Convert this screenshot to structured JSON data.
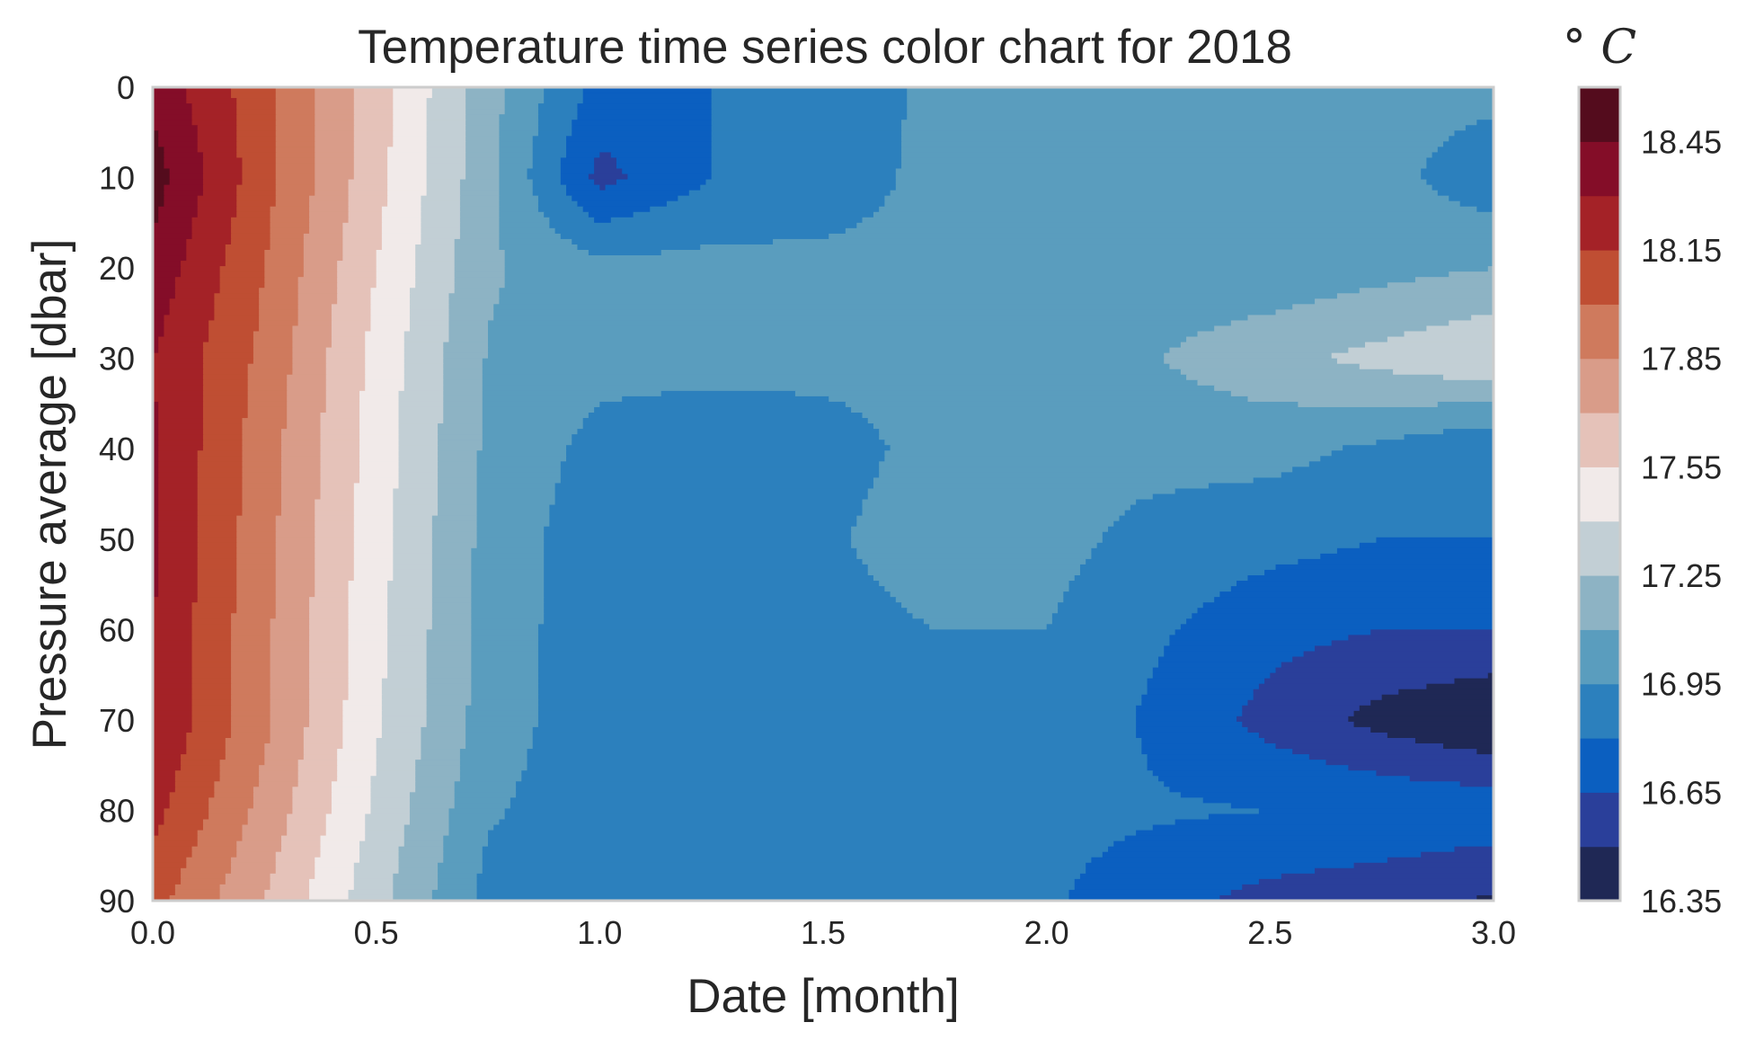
{
  "chart_data": {
    "type": "heatmap",
    "title": "Temperature time series color chart for 2018",
    "xlabel": "Date [month]",
    "ylabel": "Pressure average [dbar]",
    "xlim": [
      0.0,
      3.0
    ],
    "ylim": [
      90,
      0
    ],
    "x_ticks": [
      "0.0",
      "0.5",
      "1.0",
      "1.5",
      "2.0",
      "2.5",
      "3.0"
    ],
    "y_ticks": [
      "0",
      "10",
      "20",
      "30",
      "40",
      "50",
      "60",
      "70",
      "80",
      "90"
    ],
    "grid": false,
    "colorbar": {
      "title": "° C",
      "levels": [
        16.35,
        16.5,
        16.65,
        16.8,
        16.95,
        17.1,
        17.25,
        17.4,
        17.55,
        17.7,
        17.85,
        18.0,
        18.15,
        18.3,
        18.45,
        18.6
      ],
      "tick_labels": [
        "16.35",
        "16.65",
        "16.95",
        "17.25",
        "17.55",
        "17.85",
        "18.15",
        "18.45"
      ],
      "colors": [
        "#1f2855",
        "#2a3f9a",
        "#0b5fc0",
        "#2c80bd",
        "#5a9dbe",
        "#8db3c4",
        "#c2cfd5",
        "#f1eae9",
        "#e5c2b9",
        "#d99c89",
        "#cf7a5d",
        "#bf4e33",
        "#a42227",
        "#840d28",
        "#540c1d"
      ]
    },
    "grid_x": [
      0.0,
      0.25,
      0.5,
      0.75,
      1.0,
      1.25,
      1.5,
      1.75,
      2.0,
      2.25,
      2.5,
      2.75,
      3.0
    ],
    "grid_y": [
      0,
      10,
      20,
      30,
      40,
      50,
      60,
      70,
      80,
      90
    ],
    "values": [
      [
        18.4,
        18.05,
        17.62,
        17.16,
        16.75,
        16.8,
        16.8,
        17.0,
        17.0,
        17.0,
        17.0,
        17.0,
        17.0
      ],
      [
        18.52,
        18.05,
        17.6,
        17.15,
        16.6,
        16.8,
        16.85,
        17.0,
        17.0,
        17.0,
        17.0,
        17.0,
        16.85
      ],
      [
        18.4,
        18.0,
        17.55,
        17.12,
        17.0,
        17.0,
        17.0,
        17.0,
        17.0,
        17.0,
        17.0,
        17.05,
        17.1
      ],
      [
        18.3,
        17.96,
        17.5,
        17.09,
        17.0,
        17.0,
        17.0,
        17.0,
        17.0,
        17.1,
        17.2,
        17.3,
        17.4
      ],
      [
        18.32,
        17.92,
        17.48,
        17.07,
        16.9,
        16.85,
        16.88,
        17.0,
        16.98,
        17.0,
        17.0,
        16.92,
        16.8
      ],
      [
        18.33,
        17.9,
        17.46,
        17.05,
        16.85,
        16.85,
        16.92,
        17.05,
        17.0,
        16.9,
        16.85,
        16.8,
        16.8
      ],
      [
        18.3,
        17.88,
        17.44,
        17.04,
        16.85,
        16.85,
        16.88,
        16.95,
        16.95,
        16.82,
        16.7,
        16.65,
        16.65
      ],
      [
        18.3,
        17.88,
        17.42,
        17.03,
        16.85,
        16.85,
        16.85,
        16.88,
        16.95,
        16.76,
        16.6,
        16.45,
        16.35
      ],
      [
        18.2,
        17.8,
        17.37,
        16.97,
        16.85,
        16.85,
        16.85,
        16.85,
        16.85,
        16.82,
        16.8,
        16.78,
        16.75
      ],
      [
        18.05,
        17.7,
        17.3,
        16.9,
        16.85,
        16.85,
        16.85,
        16.85,
        16.82,
        16.7,
        16.6,
        16.55,
        16.48
      ]
    ]
  }
}
